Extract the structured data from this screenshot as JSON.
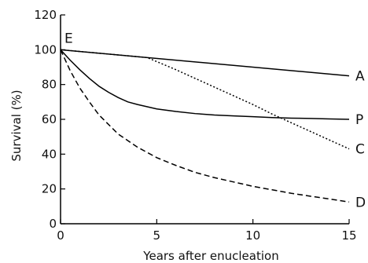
{
  "chart_data": {
    "type": "line",
    "title": "",
    "xlabel": "Years after enucleation",
    "ylabel": "Survival (%)",
    "xlim": [
      0,
      15
    ],
    "ylim": [
      0,
      120
    ],
    "xticks": [
      0,
      5,
      10,
      15
    ],
    "yticks": [
      0,
      20,
      40,
      60,
      80,
      100,
      120
    ],
    "grid": false,
    "legend": "none",
    "origin_label": "E",
    "series": [
      {
        "name": "A",
        "style": "solid",
        "x": [
          0,
          15
        ],
        "y": [
          100,
          85
        ]
      },
      {
        "name": "P",
        "style": "solid",
        "x": [
          0,
          0.5,
          1,
          1.5,
          2,
          2.5,
          3,
          3.5,
          4,
          5,
          6,
          7,
          8,
          9,
          10,
          11,
          12,
          13,
          14,
          15
        ],
        "y": [
          100,
          94,
          88.5,
          83.5,
          79,
          75.5,
          72.5,
          70,
          68.5,
          66,
          64.5,
          63.3,
          62.5,
          62,
          61.5,
          61,
          60.7,
          60.5,
          60.2,
          60
        ]
      },
      {
        "name": "C",
        "style": "dotted",
        "x": [
          0,
          4.5,
          6,
          8,
          10,
          11,
          12,
          13,
          14,
          15
        ],
        "y": [
          100,
          95.5,
          88.5,
          78.5,
          68.5,
          63,
          58,
          53,
          48,
          43
        ]
      },
      {
        "name": "D",
        "style": "dashed",
        "x": [
          0,
          0.5,
          1,
          1.5,
          2,
          3,
          4,
          5,
          6,
          7,
          8,
          9,
          10,
          11,
          12,
          13,
          14,
          15
        ],
        "y": [
          100,
          88,
          78,
          70,
          62.5,
          51.5,
          44,
          38,
          33.5,
          29.5,
          26.5,
          24,
          21.5,
          19.5,
          17.5,
          15.8,
          14.2,
          12.5
        ]
      }
    ]
  }
}
